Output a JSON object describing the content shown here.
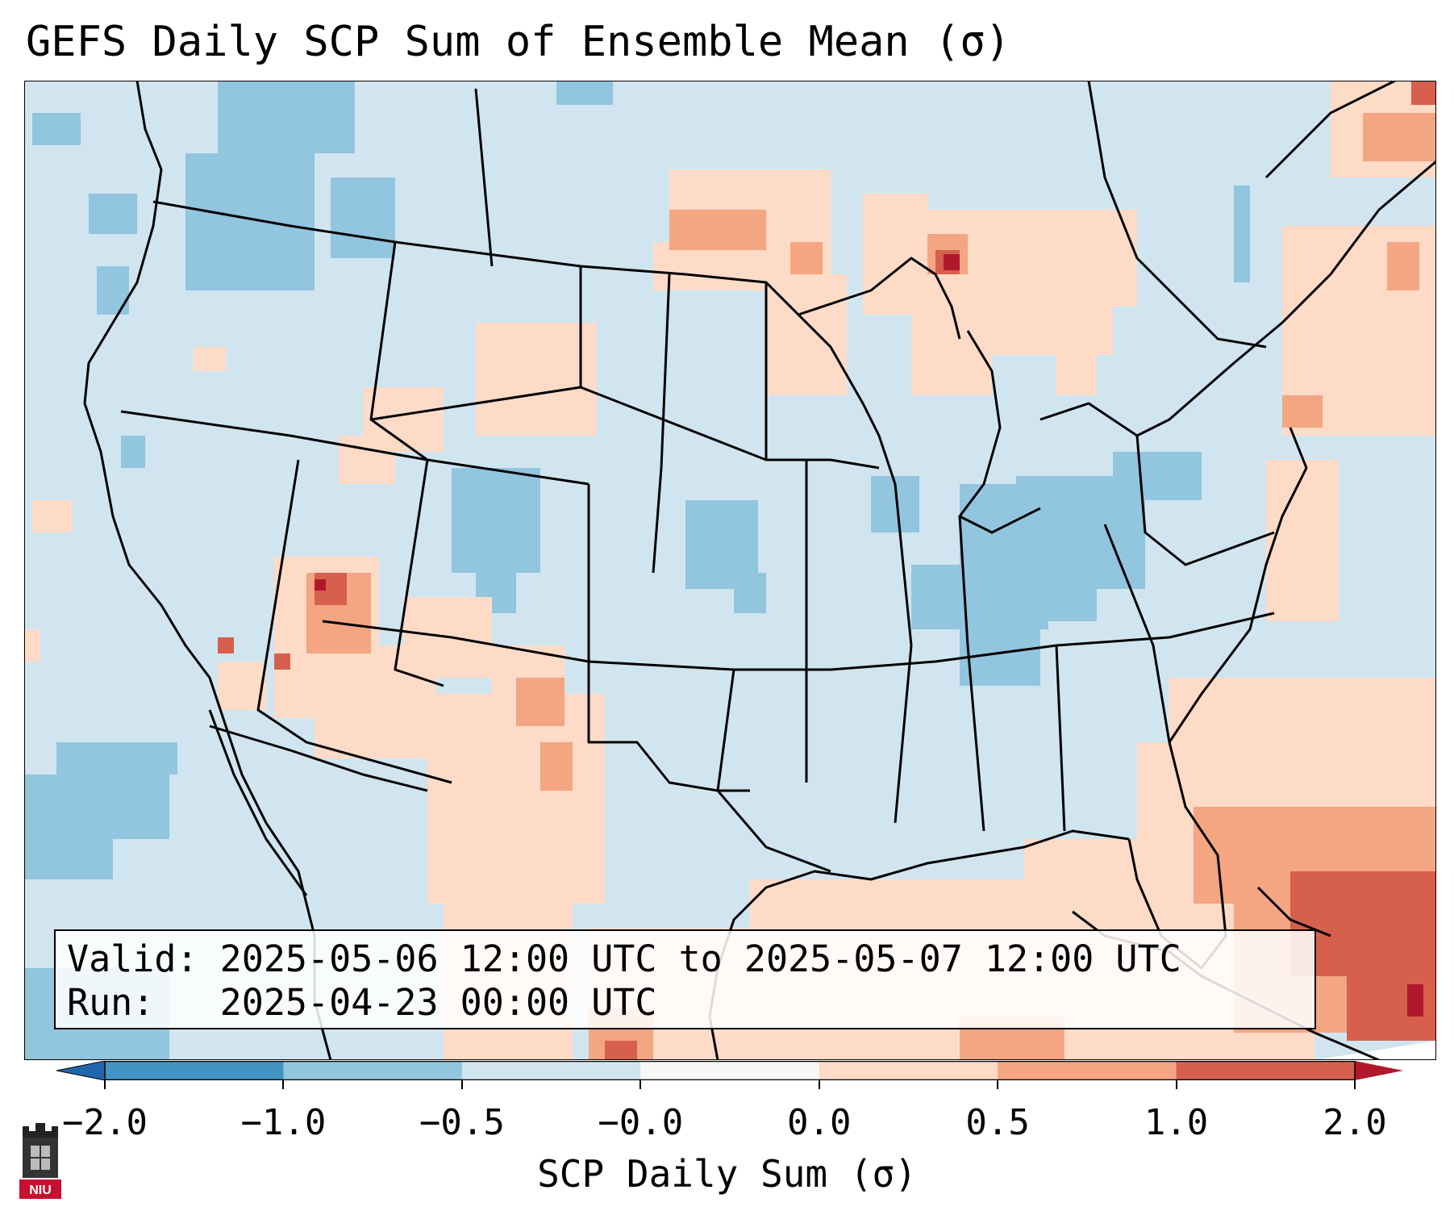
{
  "title": "GEFS Daily SCP Sum of Ensemble Mean (σ)",
  "valid_line": "Valid: 2025-05-06 12:00 UTC to 2025-05-07 12:00 UTC",
  "run_line": "Run:   2025-04-23 00:00 UTC",
  "colorbar": {
    "label": "SCP Daily Sum (σ)",
    "ticks": [
      "−2.0",
      "−1.0",
      "−0.5",
      "−0.0",
      "0.0",
      "0.5",
      "1.0",
      "2.0"
    ],
    "colors": [
      "#4393c3",
      "#92c5de",
      "#d1e5f0",
      "#f7f7f7",
      "#fddbc7",
      "#f4a582",
      "#d6604d",
      "#b2182b"
    ],
    "extend": "both"
  },
  "logo": {
    "text": "NIU",
    "icon": "niu-logo-icon"
  }
}
